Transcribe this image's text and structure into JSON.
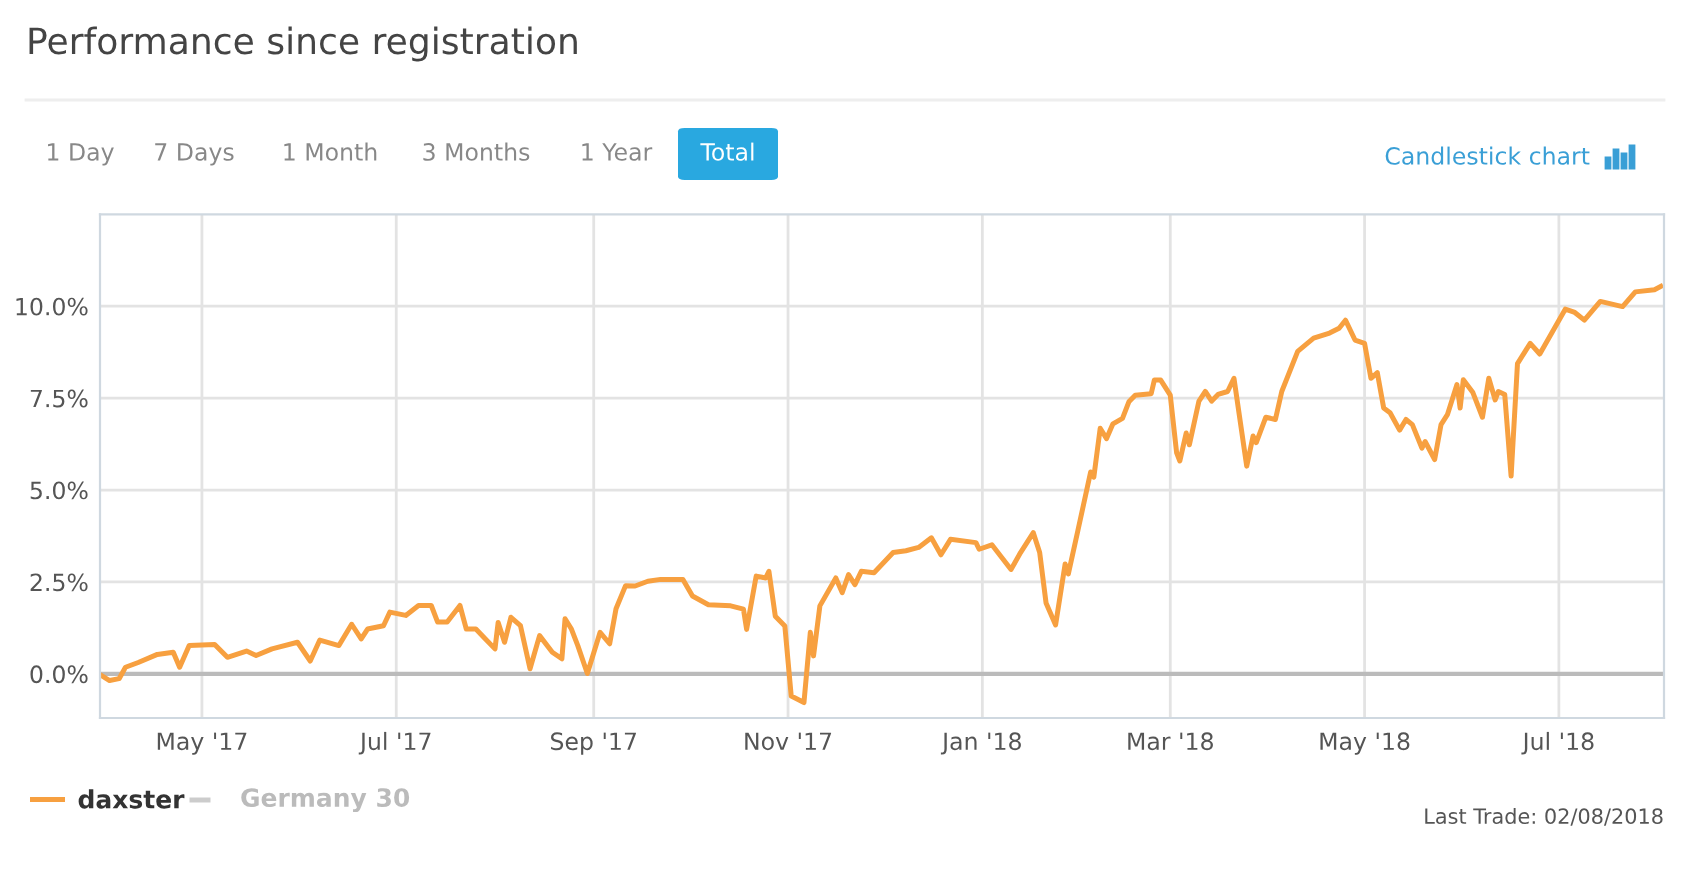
{
  "chart_data": {
    "type": "line",
    "title": "Performance since registration",
    "annotations": [
      "1 Day",
      "7 Days",
      "1 Month",
      "3 Months",
      "1 Year",
      "Total",
      "Candlestick chart",
      "Germany 30",
      "Last Trade: 02/08/2018"
    ],
    "x": [
      "2017-03-30",
      "2017-04-02",
      "2017-04-05",
      "2017-04-07",
      "2017-04-11",
      "2017-04-17",
      "2017-04-22",
      "2017-04-24",
      "2017-04-27",
      "2017-05-05",
      "2017-05-09",
      "2017-05-15",
      "2017-05-18",
      "2017-05-23",
      "2017-05-31",
      "2017-06-04",
      "2017-06-07",
      "2017-06-13",
      "2017-06-17",
      "2017-06-20",
      "2017-06-22",
      "2017-06-27",
      "2017-06-29",
      "2017-07-04",
      "2017-07-08",
      "2017-07-12",
      "2017-07-14",
      "2017-07-17",
      "2017-07-21",
      "2017-07-23",
      "2017-07-26",
      "2017-07-29",
      "2017-08-01",
      "2017-08-02",
      "2017-08-04",
      "2017-08-06",
      "2017-08-09",
      "2017-08-12",
      "2017-08-15",
      "2017-08-19",
      "2017-08-22",
      "2017-08-23",
      "2017-08-25",
      "2017-08-27",
      "2017-08-30",
      "2017-09-03",
      "2017-09-06",
      "2017-09-08",
      "2017-09-11",
      "2017-09-14",
      "2017-09-18",
      "2017-09-22",
      "2017-09-29",
      "2017-10-02",
      "2017-10-07",
      "2017-10-14",
      "2017-10-18",
      "2017-10-19",
      "2017-10-22",
      "2017-10-25",
      "2017-10-26",
      "2017-10-28",
      "2017-10-31",
      "2017-11-02",
      "2017-11-06",
      "2017-11-08",
      "2017-11-09",
      "2017-11-11",
      "2017-11-16",
      "2017-11-18",
      "2017-11-20",
      "2017-11-22",
      "2017-11-24",
      "2017-11-28",
      "2017-12-04",
      "2017-12-08",
      "2017-12-12",
      "2017-12-16",
      "2017-12-19",
      "2017-12-22",
      "2017-12-30",
      "2017-12-31",
      "2018-01-04",
      "2018-01-10",
      "2018-01-13",
      "2018-01-17",
      "2018-01-19",
      "2018-01-21",
      "2018-01-24",
      "2018-01-27",
      "2018-01-28",
      "2018-01-31",
      "2018-02-04",
      "2018-02-05",
      "2018-02-07",
      "2018-02-09",
      "2018-02-11",
      "2018-02-14",
      "2018-02-16",
      "2018-02-18",
      "2018-02-23",
      "2018-02-24",
      "2018-02-26",
      "2018-03-01",
      "2018-03-03",
      "2018-03-04",
      "2018-03-06",
      "2018-03-07",
      "2018-03-10",
      "2018-03-12",
      "2018-03-14",
      "2018-03-16",
      "2018-03-19",
      "2018-03-21",
      "2018-03-25",
      "2018-03-27",
      "2018-03-28",
      "2018-03-31",
      "2018-04-03",
      "2018-04-05",
      "2018-04-10",
      "2018-04-15",
      "2018-04-20",
      "2018-04-23",
      "2018-04-25",
      "2018-04-28",
      "2018-05-01",
      "2018-05-03",
      "2018-05-05",
      "2018-05-07",
      "2018-05-09",
      "2018-05-12",
      "2018-05-14",
      "2018-05-16",
      "2018-05-19",
      "2018-05-20",
      "2018-05-23",
      "2018-05-25",
      "2018-05-27",
      "2018-05-30",
      "2018-05-31",
      "2018-06-01",
      "2018-06-04",
      "2018-06-07",
      "2018-06-09",
      "2018-06-11",
      "2018-06-12",
      "2018-06-14",
      "2018-06-16",
      "2018-06-18",
      "2018-06-22",
      "2018-06-25",
      "2018-07-03",
      "2018-07-06",
      "2018-07-09",
      "2018-07-14",
      "2018-07-21",
      "2018-07-25",
      "2018-07-31",
      "2018-08-02"
    ],
    "series": [
      {
        "name": "daxster",
        "color": "#f7a040",
        "values": [
          -0.02,
          -0.18,
          -0.13,
          0.18,
          0.31,
          0.53,
          0.59,
          0.18,
          0.77,
          0.8,
          0.45,
          0.62,
          0.5,
          0.68,
          0.86,
          0.35,
          0.92,
          0.77,
          1.35,
          0.95,
          1.22,
          1.31,
          1.68,
          1.59,
          1.86,
          1.86,
          1.41,
          1.41,
          1.86,
          1.22,
          1.22,
          0.95,
          0.68,
          1.4,
          0.86,
          1.54,
          1.31,
          0.14,
          1.04,
          0.59,
          0.41,
          1.5,
          1.22,
          0.77,
          0.01,
          1.13,
          0.82,
          1.77,
          2.4,
          2.39,
          2.52,
          2.57,
          2.57,
          2.12,
          1.88,
          1.85,
          1.76,
          1.21,
          2.66,
          2.61,
          2.79,
          1.57,
          1.3,
          -0.6,
          -0.78,
          1.13,
          0.49,
          1.85,
          2.61,
          2.21,
          2.7,
          2.43,
          2.79,
          2.75,
          3.3,
          3.35,
          3.44,
          3.7,
          3.24,
          3.66,
          3.57,
          3.39,
          3.51,
          2.84,
          3.3,
          3.84,
          3.3,
          1.93,
          1.33,
          2.99,
          2.72,
          3.9,
          5.49,
          5.35,
          6.68,
          6.4,
          6.8,
          6.95,
          7.4,
          7.58,
          7.62,
          7.99,
          7.99,
          7.58,
          6.01,
          5.79,
          6.55,
          6.23,
          7.42,
          7.68,
          7.42,
          7.6,
          7.68,
          8.04,
          5.65,
          6.47,
          6.29,
          6.98,
          6.92,
          7.68,
          8.77,
          9.13,
          9.27,
          9.4,
          9.62,
          9.08,
          8.99,
          8.04,
          8.19,
          7.23,
          7.1,
          6.63,
          6.92,
          6.78,
          6.14,
          6.32,
          5.83,
          6.78,
          7.05,
          7.87,
          7.23,
          8.0,
          7.65,
          6.98,
          8.04,
          7.45,
          7.68,
          7.6,
          5.38,
          8.44,
          8.99,
          8.7,
          9.92,
          9.83,
          9.62,
          10.13,
          9.99,
          10.39,
          10.45,
          10.54
        ]
      }
    ],
    "xlim": [
      "2017-03-30",
      "2018-08-03"
    ],
    "xticks": [
      {
        "value": "2017-05-01",
        "label": "May '17"
      },
      {
        "value": "2017-07-01",
        "label": "Jul '17"
      },
      {
        "value": "2017-09-01",
        "label": "Sep '17"
      },
      {
        "value": "2017-11-01",
        "label": "Nov '17"
      },
      {
        "value": "2018-01-01",
        "label": "Jan '18"
      },
      {
        "value": "2018-03-01",
        "label": "Mar '18"
      },
      {
        "value": "2018-05-01",
        "label": "May '18"
      },
      {
        "value": "2018-07-01",
        "label": "Jul '18"
      }
    ],
    "ylim": [
      -1.2,
      12.5
    ],
    "yticks": [
      {
        "value": 0,
        "label": "0.0%"
      },
      {
        "value": 2.5,
        "label": "2.5%"
      },
      {
        "value": 5,
        "label": "5.0%"
      },
      {
        "value": 7.5,
        "label": "7.5%"
      },
      {
        "value": 10,
        "label": "10.0%"
      }
    ],
    "grid": true,
    "legend": "bottom left",
    "marker": "none",
    "line_style": "solid"
  }
}
